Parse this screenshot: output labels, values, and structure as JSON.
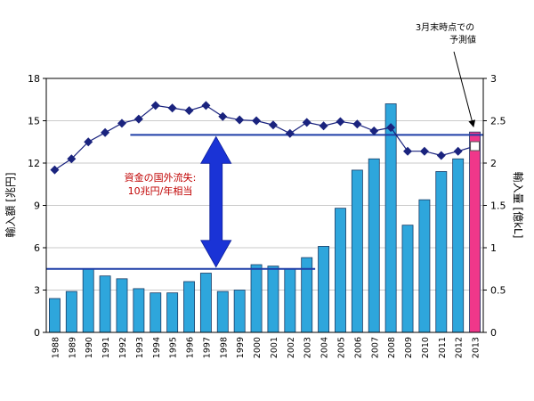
{
  "chart_data": {
    "type": "bar",
    "categories": [
      "1988",
      "1989",
      "1990",
      "1991",
      "1992",
      "1993",
      "1994",
      "1995",
      "1996",
      "1997",
      "1998",
      "1999",
      "2000",
      "2001",
      "2002",
      "2003",
      "2004",
      "2005",
      "2006",
      "2007",
      "2008",
      "2009",
      "2010",
      "2011",
      "2012",
      "2013"
    ],
    "series": [
      {
        "axis": "left",
        "kind": "bar",
        "values": [
          2.4,
          2.9,
          4.5,
          4.0,
          3.8,
          3.1,
          2.8,
          2.8,
          3.6,
          4.2,
          2.9,
          3.0,
          4.8,
          4.7,
          4.5,
          5.3,
          6.1,
          8.8,
          11.5,
          12.3,
          16.2,
          7.6,
          9.4,
          11.4,
          12.3,
          14.2
        ],
        "highlight_last": true
      },
      {
        "axis": "right",
        "kind": "line-marker",
        "values": [
          1.92,
          2.05,
          2.25,
          2.36,
          2.47,
          2.52,
          2.68,
          2.65,
          2.62,
          2.68,
          2.55,
          2.51,
          2.5,
          2.45,
          2.35,
          2.48,
          2.44,
          2.49,
          2.46,
          2.38,
          2.42,
          2.14,
          2.14,
          2.09,
          2.14,
          2.2
        ],
        "last_point_hollow": true
      }
    ],
    "y_left": {
      "label": "輸入額 [兆円]",
      "min": 0,
      "max": 18,
      "ticks": [
        "0",
        "3",
        "6",
        "9",
        "12",
        "15",
        "18"
      ]
    },
    "y_right": {
      "label": "輸入量 [億kL]",
      "min": 0,
      "max": 3,
      "ticks": [
        "0",
        "0.5",
        "1",
        "1.5",
        "2",
        "2.5",
        "3"
      ]
    },
    "reference_lines": [
      {
        "value": 4.5,
        "from": "1988",
        "to": "2003"
      },
      {
        "value": 14.0,
        "from": "1993",
        "to": "2013"
      }
    ],
    "grid": true,
    "annotations": {
      "gap_lines": [
        "資金の国外流失:",
        "10兆円/年相当"
      ],
      "forecast_lines": [
        "3月末時点での",
        "予測値"
      ]
    },
    "colors": {
      "bar": "#2EA6DC",
      "bar_highlight": "#F0378A",
      "bar_edge": "#1a3c66",
      "line": "#1a237e",
      "reference": "#1f3fa8",
      "arrow": "#1a33d6",
      "annotation_text": "#c00000"
    }
  }
}
